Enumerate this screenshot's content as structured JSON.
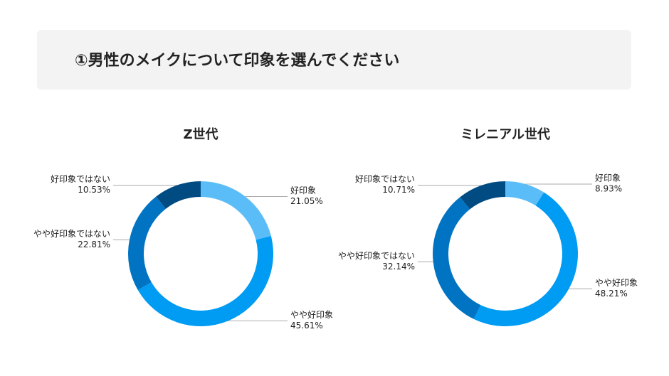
{
  "header": {
    "title": "①男性のメイクについて印象を選んでください"
  },
  "chart_data": [
    {
      "type": "pie",
      "title": "Z世代",
      "categories": [
        "好印象",
        "やや好印象",
        "やや好印象ではない",
        "好印象ではない"
      ],
      "values": [
        21.05,
        45.61,
        22.81,
        10.53
      ],
      "value_labels": [
        "21.05%",
        "45.61%",
        "22.81%",
        "10.53%"
      ],
      "colors": [
        "#5bbdf8",
        "#009bf3",
        "#0074c2",
        "#004c82"
      ]
    },
    {
      "type": "pie",
      "title": "ミレニアル世代",
      "categories": [
        "好印象",
        "やや好印象",
        "やや好印象ではない",
        "好印象ではない"
      ],
      "values": [
        8.93,
        48.21,
        32.14,
        10.71
      ],
      "value_labels": [
        "8.93%",
        "48.21%",
        "32.14%",
        "10.71%"
      ],
      "colors": [
        "#5bbdf8",
        "#009bf3",
        "#0074c2",
        "#004c82"
      ]
    }
  ]
}
